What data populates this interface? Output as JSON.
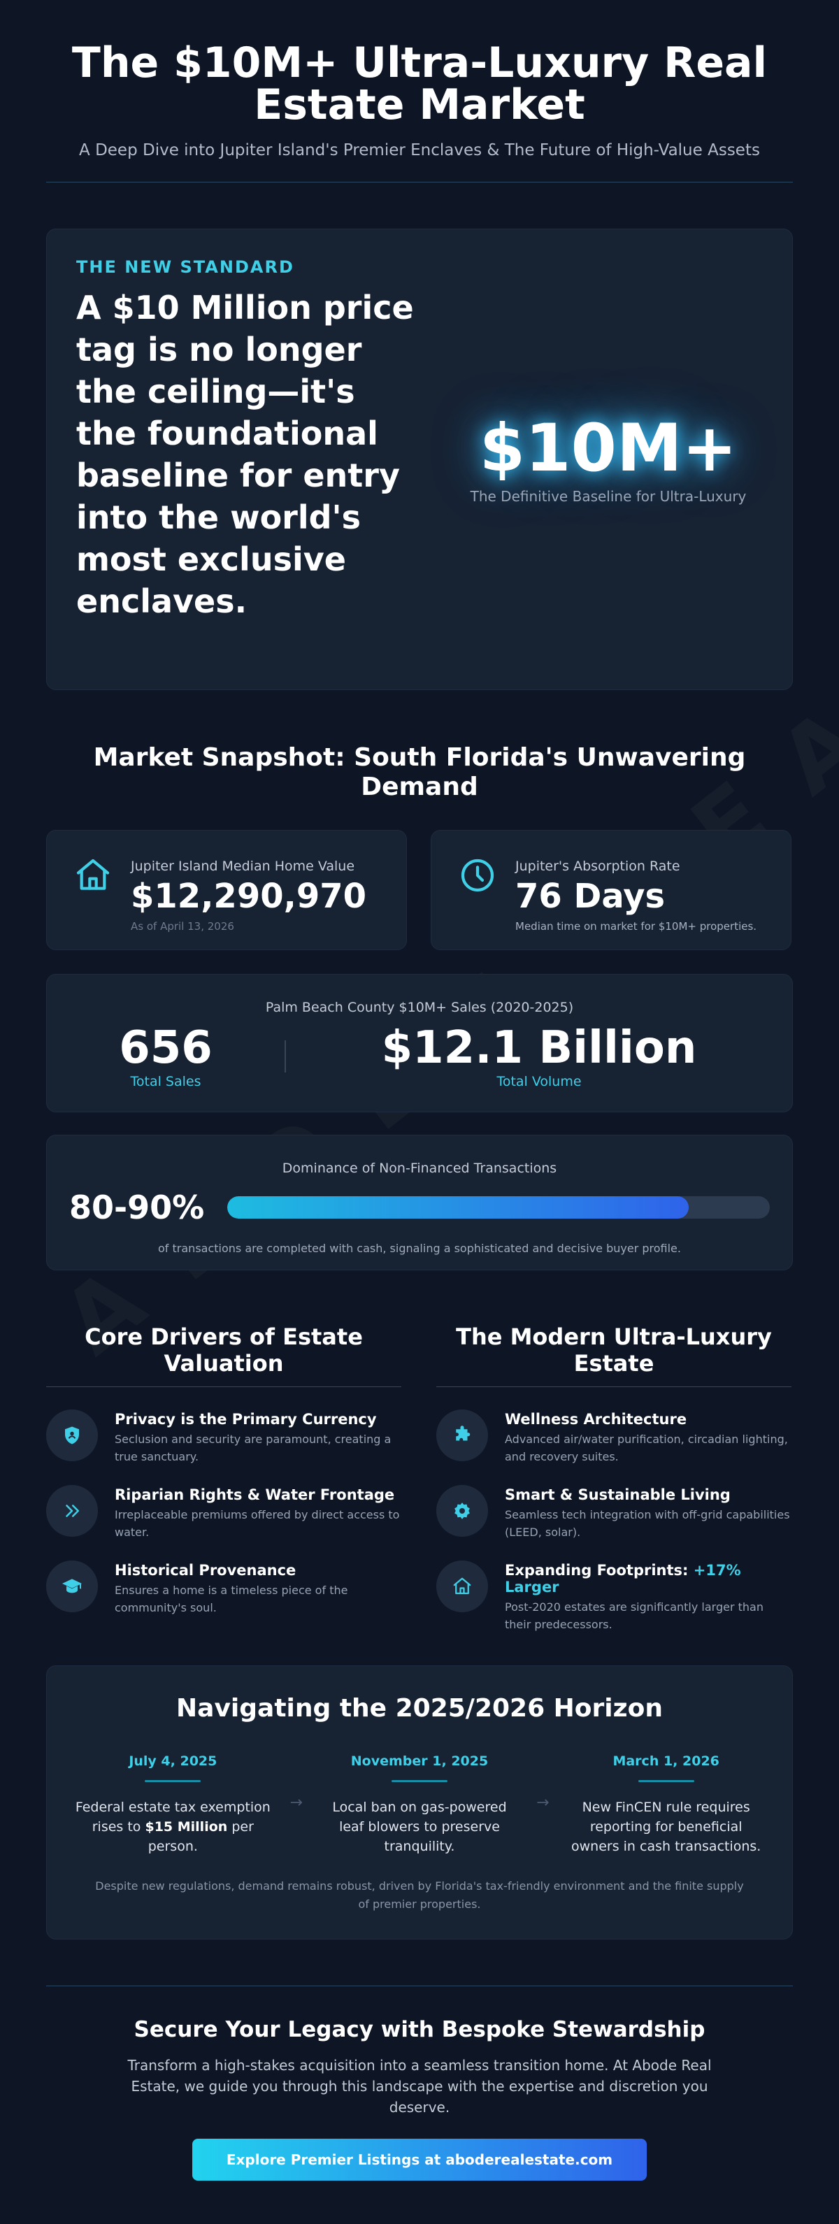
{
  "header": {
    "title": "The $10M+ Ultra-Luxury Real Estate Market",
    "subtitle": "A Deep Dive into Jupiter Island's Premier Enclaves & The Future of High-Value Assets"
  },
  "watermark": "ABODE REAL ESTATE",
  "hero": {
    "eyebrow": "THE NEW STANDARD",
    "statement": "A $10 Million price tag is no longer the ceiling—it's the foundational baseline for entry into the world's most exclusive enclaves.",
    "big_number": "$10M+",
    "big_caption": "The Definitive Baseline for Ultra-Luxury"
  },
  "snapshot": {
    "title": "Market Snapshot: South Florida's Unwavering Demand",
    "median": {
      "icon": "home-icon",
      "label": "Jupiter Island Median Home Value",
      "value": "$12,290,970",
      "note": "As of April 13, 2026"
    },
    "absorption": {
      "icon": "clock-icon",
      "label": "Jupiter's Absorption Rate",
      "value": "76 Days",
      "note": "Median time on market for $10M+ properties."
    },
    "sales": {
      "title": "Palm Beach County $10M+ Sales (2020-2025)",
      "total_sales": "656",
      "total_sales_label": "Total Sales",
      "total_volume": "$12.1 Billion",
      "total_volume_label": "Total Volume"
    },
    "cash": {
      "title": "Dominance of Non-Financed Transactions",
      "pct": "80-90%",
      "bar_fill_fraction": 0.85,
      "note": "of transactions are completed with cash, signaling a sophisticated and decisive buyer profile."
    }
  },
  "drivers": {
    "title": "Core Drivers of Estate Valuation",
    "items": [
      {
        "icon": "shield-icon",
        "title": "Privacy is the Primary Currency",
        "desc": "Seclusion and security are paramount, creating a true sanctuary."
      },
      {
        "icon": "chevrons-right-icon",
        "title": "Riparian Rights & Water Frontage",
        "desc": "Irreplaceable premiums offered by direct access to water."
      },
      {
        "icon": "graduation-cap-icon",
        "title": "Historical Provenance",
        "desc": "Ensures a home is a timeless piece of the community's soul."
      }
    ]
  },
  "modern": {
    "title": "The Modern Ultra-Luxury Estate",
    "items": [
      {
        "icon": "puzzle-icon",
        "title": "Wellness Architecture",
        "accent": "",
        "desc": "Advanced air/water purification, circadian lighting, and recovery suites."
      },
      {
        "icon": "gear-icon",
        "title": "Smart & Sustainable Living",
        "accent": "",
        "desc": "Seamless tech integration with off-grid capabilities (LEED, solar)."
      },
      {
        "icon": "home-icon",
        "title": "Expanding Footprints: ",
        "accent": "+17% Larger",
        "desc": "Post-2020 estates are significantly larger than their predecessors."
      }
    ]
  },
  "horizon": {
    "title": "Navigating the 2025/2026 Horizon",
    "events": [
      {
        "date": "July 4, 2025",
        "text_before": "Federal estate tax exemption rises to ",
        "bold": "$15 Million",
        "text_after": " per person."
      },
      {
        "date": "November 1, 2025",
        "text_before": "Local ban on gas-powered leaf blowers to preserve tranquility.",
        "bold": "",
        "text_after": ""
      },
      {
        "date": "March 1, 2026",
        "text_before": "New FinCEN rule requires reporting for beneficial owners in cash transactions.",
        "bold": "",
        "text_after": ""
      }
    ],
    "arrow": "→",
    "note": "Despite new regulations, demand remains robust, driven by Florida's tax-friendly environment and the finite supply of premier properties."
  },
  "cta": {
    "title": "Secure Your Legacy with Bespoke Stewardship",
    "text": "Transform a high-stakes acquisition into a seamless transition home. At Abode Real Estate, we guide you through this landscape with the expertise and discretion you deserve.",
    "button_label": "Explore Premier Listings at aboderealestate.com"
  },
  "colors": {
    "background": "#0e1625",
    "card": "#172233",
    "accent": "#3fd0e8",
    "gradient_start": "#22d3ee",
    "gradient_end": "#2f63ea"
  }
}
